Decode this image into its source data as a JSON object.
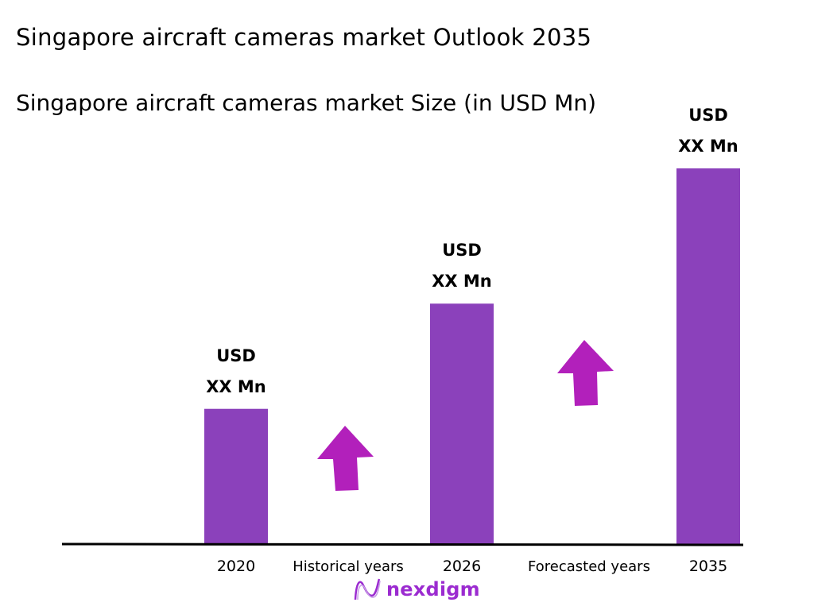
{
  "chart_data": {
    "type": "bar",
    "title": "Singapore aircraft cameras market Outlook 2035",
    "subtitle": "Singapore aircraft cameras market Size (in USD Mn)",
    "categories": [
      "2020",
      "2026",
      "2035"
    ],
    "values": [
      36,
      64,
      100
    ],
    "data_labels": [
      {
        "line1": "USD",
        "line2": "XX Mn"
      },
      {
        "line1": "USD",
        "line2": "XX Mn"
      },
      {
        "line1": "USD",
        "line2": "XX Mn"
      }
    ],
    "period_labels": [
      "Historical years",
      "Forecasted years"
    ],
    "ylim": [
      0,
      100
    ],
    "grid": false,
    "legend": "none",
    "colors": {
      "bar": "#8b41bb",
      "arrow": "#b220bb",
      "axis": "#000000"
    },
    "annotations": [
      "up-arrow-icon",
      "up-arrow-icon"
    ]
  },
  "logo": {
    "text": "nexdigm",
    "color": "#9b2bd0"
  }
}
